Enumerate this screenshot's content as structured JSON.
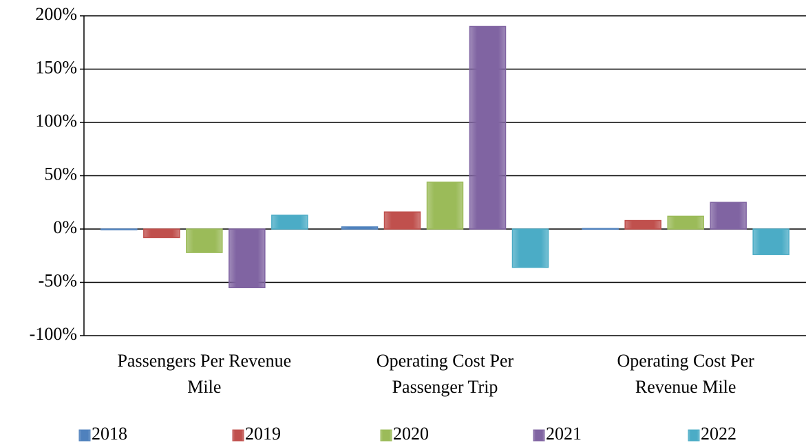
{
  "chart_data": {
    "type": "bar",
    "categories": [
      "Passengers Per Revenue Mile",
      "Operating Cost Per Passenger Trip",
      "Operating Cost Per Revenue Mile"
    ],
    "series": [
      {
        "name": "2018",
        "color": "#4f81bd",
        "values": [
          -0.5,
          2,
          0.5
        ]
      },
      {
        "name": "2019",
        "color": "#c0504d",
        "values": [
          -8,
          16,
          8
        ]
      },
      {
        "name": "2020",
        "color": "#9bbb59",
        "values": [
          -22,
          44,
          12
        ]
      },
      {
        "name": "2021",
        "color": "#8064a2",
        "values": [
          -55,
          190,
          25
        ]
      },
      {
        "name": "2022",
        "color": "#4bacc6",
        "values": [
          13,
          -36,
          -24
        ]
      }
    ],
    "ylim": [
      -100,
      200
    ],
    "yticks": [
      {
        "value": -100,
        "label": "-100%"
      },
      {
        "value": -50,
        "label": "-50%"
      },
      {
        "value": 0,
        "label": "0%"
      },
      {
        "value": 50,
        "label": "50%"
      },
      {
        "value": 100,
        "label": "100%"
      },
      {
        "value": 150,
        "label": "150%"
      },
      {
        "value": 200,
        "label": "200%"
      }
    ],
    "grid": true,
    "legend": "bottom"
  }
}
